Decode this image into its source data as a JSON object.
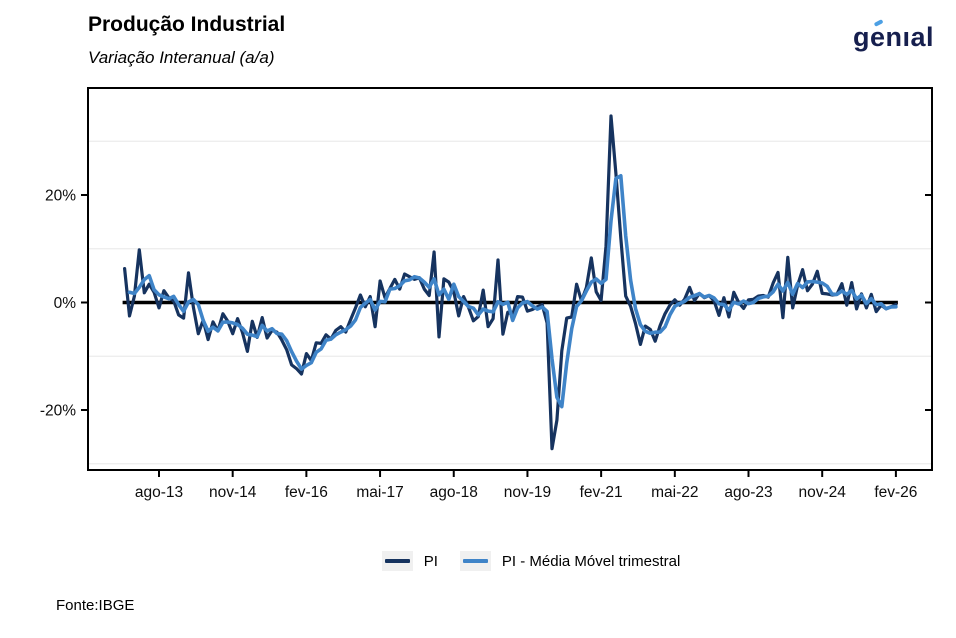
{
  "header": {
    "title": "Produção Industrial",
    "subtitle": "Variação Interanual (a/a)"
  },
  "logo": {
    "text": "genıal",
    "text_color": "#161f4e",
    "accent_color": "#4da0e4"
  },
  "footer": {
    "source": "Fonte:IBGE"
  },
  "legend": {
    "items": [
      {
        "label": "PI",
        "color": "#16335f"
      },
      {
        "label": "PI - Média Móvel trimestral",
        "color": "#3f84c8"
      }
    ],
    "key_background": "#f0f0f0"
  },
  "chart_data": {
    "type": "line",
    "title": "Produção Industrial",
    "subtitle": "Variação Interanual (a/a)",
    "x_start": "jan-13",
    "x_frequency": "monthly",
    "n_points": 158,
    "x_tick_labels": [
      "ago-13",
      "nov-14",
      "fev-16",
      "mai-17",
      "ago-18",
      "nov-19",
      "fev-21",
      "mai-22",
      "ago-23",
      "nov-24",
      "fev-26"
    ],
    "x_tick_month_index": [
      7,
      22,
      37,
      52,
      67,
      82,
      97,
      112,
      127,
      142,
      157
    ],
    "y_tick_labels": [
      "20%",
      "0%",
      "-20%"
    ],
    "y_tick_values": [
      20,
      0,
      -20
    ],
    "y_minor_gridlines": [
      30,
      10,
      -10,
      -30
    ],
    "ylim": [
      -31.5,
      40
    ],
    "zero_line": true,
    "grid_color": "#ebebeb",
    "legend_position": "bottom",
    "series": [
      {
        "name": "PI",
        "color": "#16335f",
        "values": [
          6.3,
          -2.5,
          1.2,
          9.8,
          1.8,
          3.4,
          1.9,
          -1.0,
          2.2,
          0.9,
          0.3,
          -2.3,
          -2.9,
          5.5,
          -0.9,
          -5.8,
          -3.3,
          -6.9,
          -3.6,
          -5.3,
          -2.1,
          -3.5,
          -5.8,
          -3.0,
          -5.6,
          -9.1,
          -3.5,
          -6.5,
          -2.8,
          -6.6,
          -5.2,
          -5.5,
          -7.0,
          -8.8,
          -11.6,
          -12.3,
          -13.3,
          -9.5,
          -10.8,
          -7.5,
          -7.6,
          -6.0,
          -6.8,
          -5.2,
          -4.5,
          -5.5,
          -3.2,
          -1.0,
          1.4,
          -0.8,
          1.1,
          -4.5,
          4.0,
          0.9,
          2.6,
          4.3,
          2.5,
          5.3,
          4.8,
          4.3,
          4.6,
          2.5,
          1.3,
          9.4,
          -6.4,
          4.4,
          3.8,
          2.0,
          -2.5,
          1.1,
          -0.9,
          -3.4,
          -2.6,
          2.3,
          -4.5,
          -3.0,
          7.9,
          -5.9,
          -1.8,
          -2.3,
          1.1,
          1.0,
          -1.6,
          -1.3,
          -0.8,
          -0.4,
          -3.8,
          -27.2,
          -21.9,
          -9.0,
          -2.9,
          -2.7,
          3.4,
          0.3,
          2.8,
          8.3,
          2.0,
          0.4,
          10.5,
          34.7,
          24.0,
          12.0,
          1.2,
          -0.7,
          -3.9,
          -7.8,
          -4.4,
          -5.0,
          -7.2,
          -4.3,
          -2.1,
          -0.5,
          0.5,
          -0.5,
          0.6,
          2.8,
          0.4,
          1.7,
          0.9,
          1.3,
          0.3,
          -2.4,
          0.9,
          -2.7,
          1.9,
          0.0,
          -1.1,
          0.5,
          0.6,
          1.2,
          1.3,
          1.0,
          3.6,
          5.6,
          -2.8,
          8.4,
          -1.0,
          3.2,
          6.1,
          2.2,
          3.4,
          5.8,
          1.7,
          1.6,
          1.4,
          1.5,
          3.5,
          -0.5,
          3.7,
          -1.2,
          1.6,
          -1.0,
          1.5,
          -1.7,
          -0.5,
          -1.2,
          -0.8,
          -0.4
        ]
      },
      {
        "name": "PI - Média Móvel trimestral",
        "color": "#3f84c8",
        "derived": "trailing 3-month moving average of PI"
      }
    ]
  }
}
